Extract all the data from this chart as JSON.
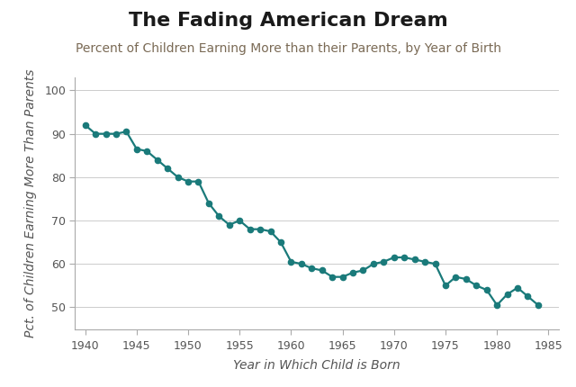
{
  "title": "The Fading American Dream",
  "subtitle": "Percent of Children Earning More than their Parents, by Year of Birth",
  "xlabel": "Year in Which Child is Born",
  "ylabel": "Pct. of Children Earning More Than Parents",
  "x": [
    1940,
    1941,
    1942,
    1943,
    1944,
    1945,
    1946,
    1947,
    1948,
    1949,
    1950,
    1951,
    1952,
    1953,
    1954,
    1955,
    1956,
    1957,
    1958,
    1959,
    1960,
    1961,
    1962,
    1963,
    1964,
    1965,
    1966,
    1967,
    1968,
    1969,
    1970,
    1971,
    1972,
    1973,
    1974,
    1975,
    1976,
    1977,
    1978,
    1979,
    1980,
    1981,
    1982,
    1983,
    1984
  ],
  "y": [
    92,
    90,
    90,
    90,
    90.5,
    86.5,
    86,
    84,
    82,
    80,
    79,
    79,
    74,
    71,
    69,
    70,
    68,
    68,
    67.5,
    65,
    60.5,
    60,
    59,
    58.5,
    57,
    57,
    58,
    58.5,
    60,
    60.5,
    61.5,
    61.5,
    61,
    60.5,
    60,
    55,
    57,
    56.5,
    55,
    54,
    50.5,
    53,
    54.5,
    52.5,
    50.5
  ],
  "line_color": "#1a7a7a",
  "marker": "o",
  "marker_size": 4.5,
  "line_width": 1.6,
  "xlim": [
    1939,
    1986
  ],
  "ylim": [
    45,
    103
  ],
  "yticks": [
    50,
    60,
    70,
    80,
    90,
    100
  ],
  "xticks": [
    1940,
    1945,
    1950,
    1955,
    1960,
    1965,
    1970,
    1975,
    1980,
    1985
  ],
  "bg_color": "#ffffff",
  "grid_color": "#cccccc",
  "title_fontsize": 16,
  "subtitle_fontsize": 10,
  "label_fontsize": 10,
  "tick_fontsize": 9,
  "title_color": "#1a1a1a",
  "subtitle_color": "#7a6a55",
  "label_color": "#555555",
  "tick_color": "#555555"
}
